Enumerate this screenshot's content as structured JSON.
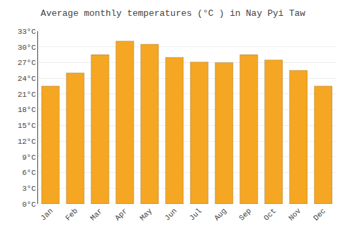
{
  "chart_data": {
    "type": "bar",
    "title": "Average monthly temperatures (°C ) in Nay Pyi Taw",
    "categories": [
      "Jan",
      "Feb",
      "Mar",
      "Apr",
      "May",
      "Jun",
      "Jul",
      "Aug",
      "Sep",
      "Oct",
      "Nov",
      "Dec"
    ],
    "values": [
      22.5,
      25.0,
      28.5,
      31.1,
      30.5,
      28.0,
      27.1,
      27.0,
      28.5,
      27.5,
      25.5,
      22.5
    ],
    "color": "#F5A623",
    "ylim": [
      0,
      33
    ],
    "yticks": [
      {
        "value": 0,
        "label": "0°C"
      },
      {
        "value": 3,
        "label": "3°C"
      },
      {
        "value": 6,
        "label": "6°C"
      },
      {
        "value": 9,
        "label": "9°C"
      },
      {
        "value": 12,
        "label": "12°C"
      },
      {
        "value": 15,
        "label": "15°C"
      },
      {
        "value": 18,
        "label": "18°C"
      },
      {
        "value": 21,
        "label": "21°C"
      },
      {
        "value": 24,
        "label": "24°C"
      },
      {
        "value": 27,
        "label": "27°C"
      },
      {
        "value": 30,
        "label": "30°C"
      },
      {
        "value": 33,
        "label": "33°C"
      }
    ],
    "grid": true
  }
}
